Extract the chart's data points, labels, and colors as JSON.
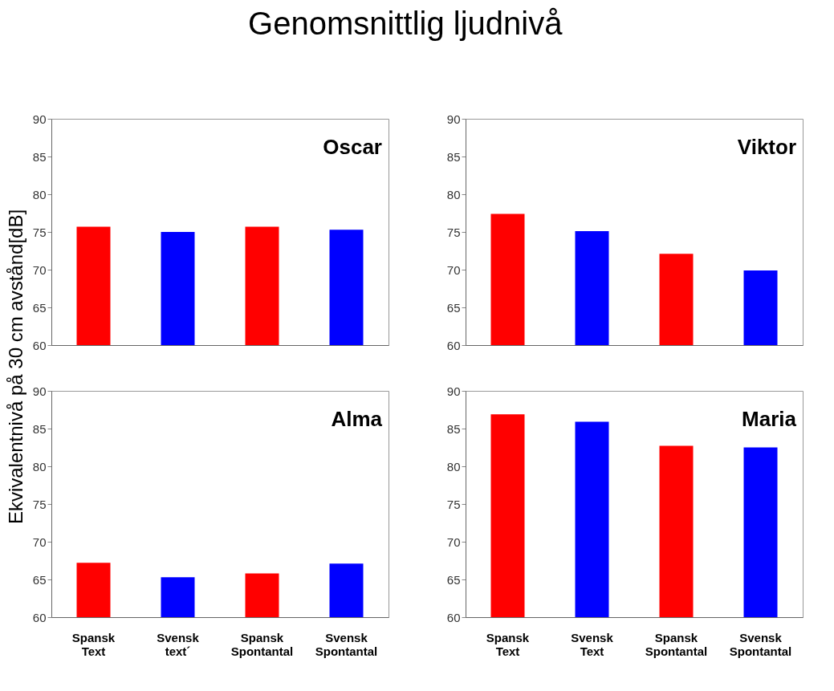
{
  "chart_data": [
    {
      "type": "bar",
      "title": "Genomsnittlig ljudnivå",
      "ylabel": "Ekvivalentnivå på 30 cm avstånd[dB]",
      "annotations": [
        "Oscar"
      ],
      "categories": [
        null,
        null,
        null,
        null
      ],
      "values": [
        75.7,
        75.0,
        75.7,
        75.3
      ],
      "colors": [
        "#ff0000",
        "#0000ff",
        "#ff0000",
        "#0000ff"
      ],
      "ylim": [
        60,
        90
      ],
      "yticks": [
        60,
        65,
        70,
        75,
        80,
        85,
        90
      ],
      "tick_labels": "y",
      "grid": false
    },
    {
      "type": "bar",
      "annotations": [
        "Viktor"
      ],
      "categories": [
        null,
        null,
        null,
        null
      ],
      "values": [
        77.4,
        75.1,
        72.1,
        69.9
      ],
      "colors": [
        "#ff0000",
        "#0000ff",
        "#ff0000",
        "#0000ff"
      ],
      "ylim": [
        60,
        90
      ],
      "yticks": [
        60,
        65,
        70,
        75,
        80,
        85,
        90
      ],
      "tick_labels": "y",
      "grid": false
    },
    {
      "type": "bar",
      "annotations": [
        "Alma"
      ],
      "categories": [
        "Spansk Text",
        "Svensk text´",
        "Spansk Spontantal",
        "Svensk Spontantal"
      ],
      "values": [
        67.2,
        65.3,
        65.8,
        67.1
      ],
      "colors": [
        "#ff0000",
        "#0000ff",
        "#ff0000",
        "#0000ff"
      ],
      "ylim": [
        60,
        90
      ],
      "yticks": [
        60,
        65,
        70,
        75,
        80,
        85,
        90
      ],
      "grid": false
    },
    {
      "type": "bar",
      "annotations": [
        "Maria"
      ],
      "categories": [
        "Spansk Text",
        "Svensk Text",
        "Spansk Spontantal",
        "Svensk Spontantal"
      ],
      "values": [
        86.9,
        85.9,
        82.7,
        82.5
      ],
      "colors": [
        "#ff0000",
        "#0000ff",
        "#ff0000",
        "#0000ff"
      ],
      "ylim": [
        60,
        90
      ],
      "yticks": [
        60,
        65,
        70,
        75,
        80,
        85,
        90
      ],
      "grid": false
    }
  ]
}
